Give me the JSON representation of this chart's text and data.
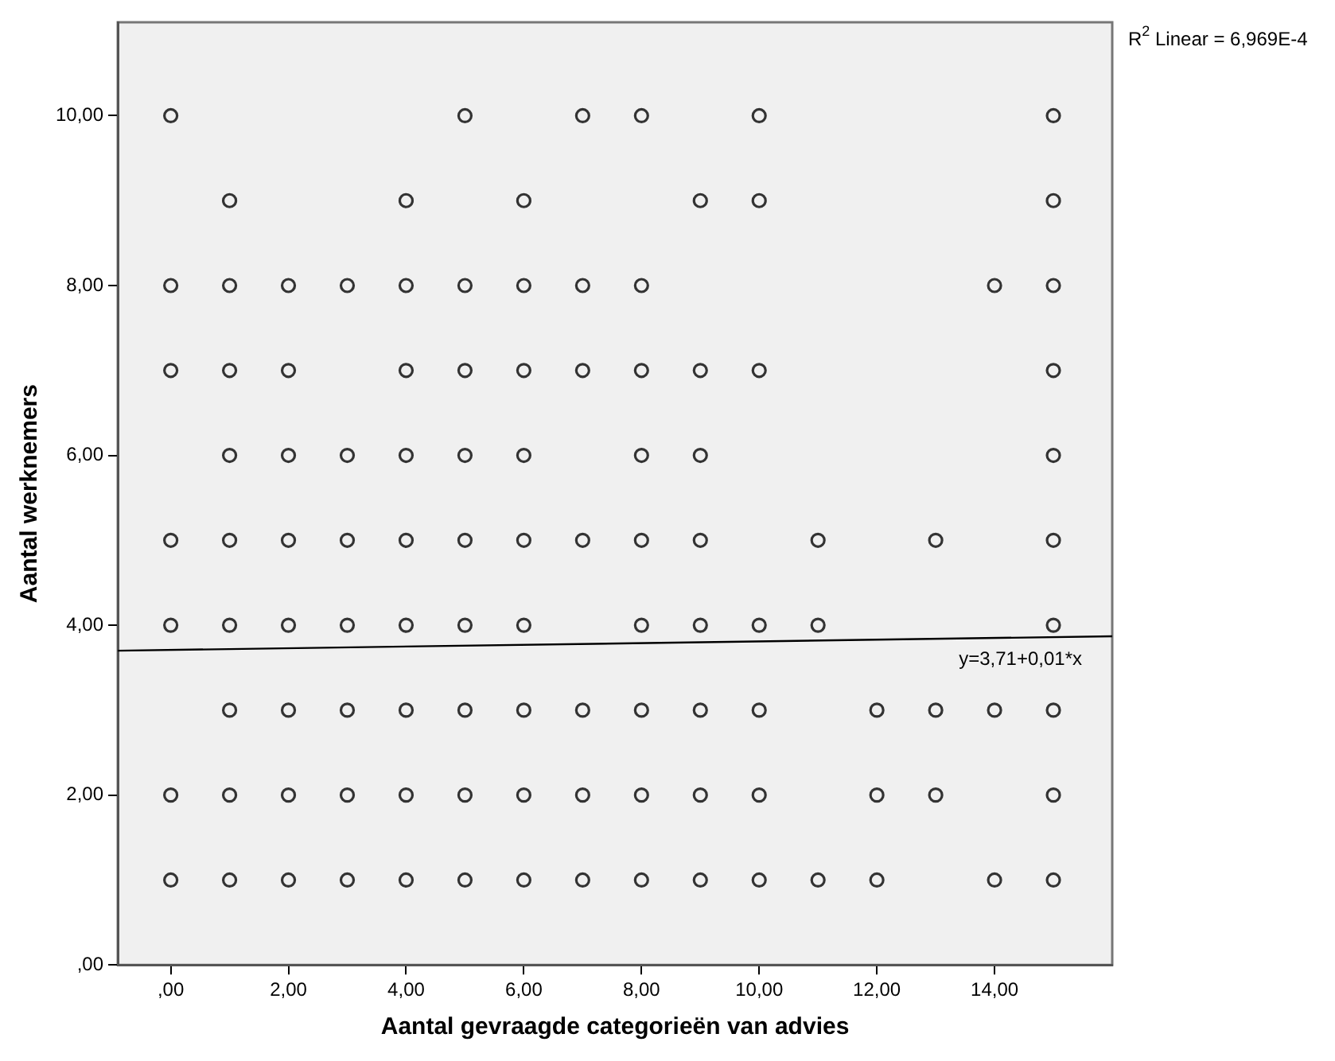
{
  "chart_data": {
    "type": "scatter",
    "xlabel": "Aantal gevraagde categorieën van advies",
    "ylabel": "Aantal werknemers",
    "xlim": [
      -0.9,
      16
    ],
    "ylim": [
      0,
      11.1
    ],
    "xticks": [
      {
        "value": 0,
        "label": ",00"
      },
      {
        "value": 2,
        "label": "2,00"
      },
      {
        "value": 4,
        "label": "4,00"
      },
      {
        "value": 6,
        "label": "6,00"
      },
      {
        "value": 8,
        "label": "8,00"
      },
      {
        "value": 10,
        "label": "10,00"
      },
      {
        "value": 12,
        "label": "12,00"
      },
      {
        "value": 14,
        "label": "14,00"
      }
    ],
    "yticks": [
      {
        "value": 0,
        "label": ",00"
      },
      {
        "value": 2,
        "label": "2,00"
      },
      {
        "value": 4,
        "label": "4,00"
      },
      {
        "value": 6,
        "label": "6,00"
      },
      {
        "value": 8,
        "label": "8,00"
      },
      {
        "value": 10,
        "label": "10,00"
      }
    ],
    "marker": "circle",
    "grid": false,
    "legend": false,
    "series": [
      {
        "color": "#333333",
        "x": [
          0,
          5,
          7,
          8,
          10,
          15,
          1,
          4,
          6,
          9,
          10,
          15,
          0,
          1,
          2,
          3,
          4,
          5,
          6,
          7,
          8,
          14,
          15,
          0,
          1,
          2,
          4,
          5,
          6,
          7,
          8,
          9,
          10,
          15,
          1,
          2,
          3,
          4,
          5,
          6,
          8,
          9,
          15,
          0,
          1,
          2,
          3,
          4,
          5,
          6,
          7,
          8,
          9,
          11,
          13,
          15,
          0,
          1,
          2,
          3,
          4,
          5,
          6,
          8,
          9,
          10,
          11,
          15,
          1,
          2,
          3,
          4,
          5,
          6,
          7,
          8,
          9,
          10,
          12,
          13,
          14,
          15,
          0,
          1,
          2,
          3,
          4,
          5,
          6,
          7,
          8,
          9,
          10,
          12,
          13,
          15,
          0,
          1,
          2,
          3,
          4,
          5,
          6,
          7,
          8,
          9,
          10,
          11,
          12,
          14,
          15
        ],
        "values": [
          10,
          10,
          10,
          10,
          10,
          10,
          9,
          9,
          9,
          9,
          9,
          9,
          8,
          8,
          8,
          8,
          8,
          8,
          8,
          8,
          8,
          8,
          8,
          7,
          7,
          7,
          7,
          7,
          7,
          7,
          7,
          7,
          7,
          7,
          6,
          6,
          6,
          6,
          6,
          6,
          6,
          6,
          6,
          5,
          5,
          5,
          5,
          5,
          5,
          5,
          5,
          5,
          5,
          5,
          5,
          5,
          4,
          4,
          4,
          4,
          4,
          4,
          4,
          4,
          4,
          4,
          4,
          4,
          3,
          3,
          3,
          3,
          3,
          3,
          3,
          3,
          3,
          3,
          3,
          3,
          3,
          3,
          2,
          2,
          2,
          2,
          2,
          2,
          2,
          2,
          2,
          2,
          2,
          2,
          2,
          2,
          1,
          1,
          1,
          1,
          1,
          1,
          1,
          1,
          1,
          1,
          1,
          1,
          1,
          1,
          1
        ]
      },
      {
        "type": "line",
        "color": "#000000",
        "marker": "none",
        "x": [
          -0.9,
          16
        ],
        "values": [
          3.7,
          3.87
        ]
      }
    ],
    "annotations": [
      {
        "text": "y=3,71+0,01*x",
        "x": 15,
        "y": 3.86
      },
      "R$^{2}$ Linear = 6,969E-4"
    ]
  }
}
